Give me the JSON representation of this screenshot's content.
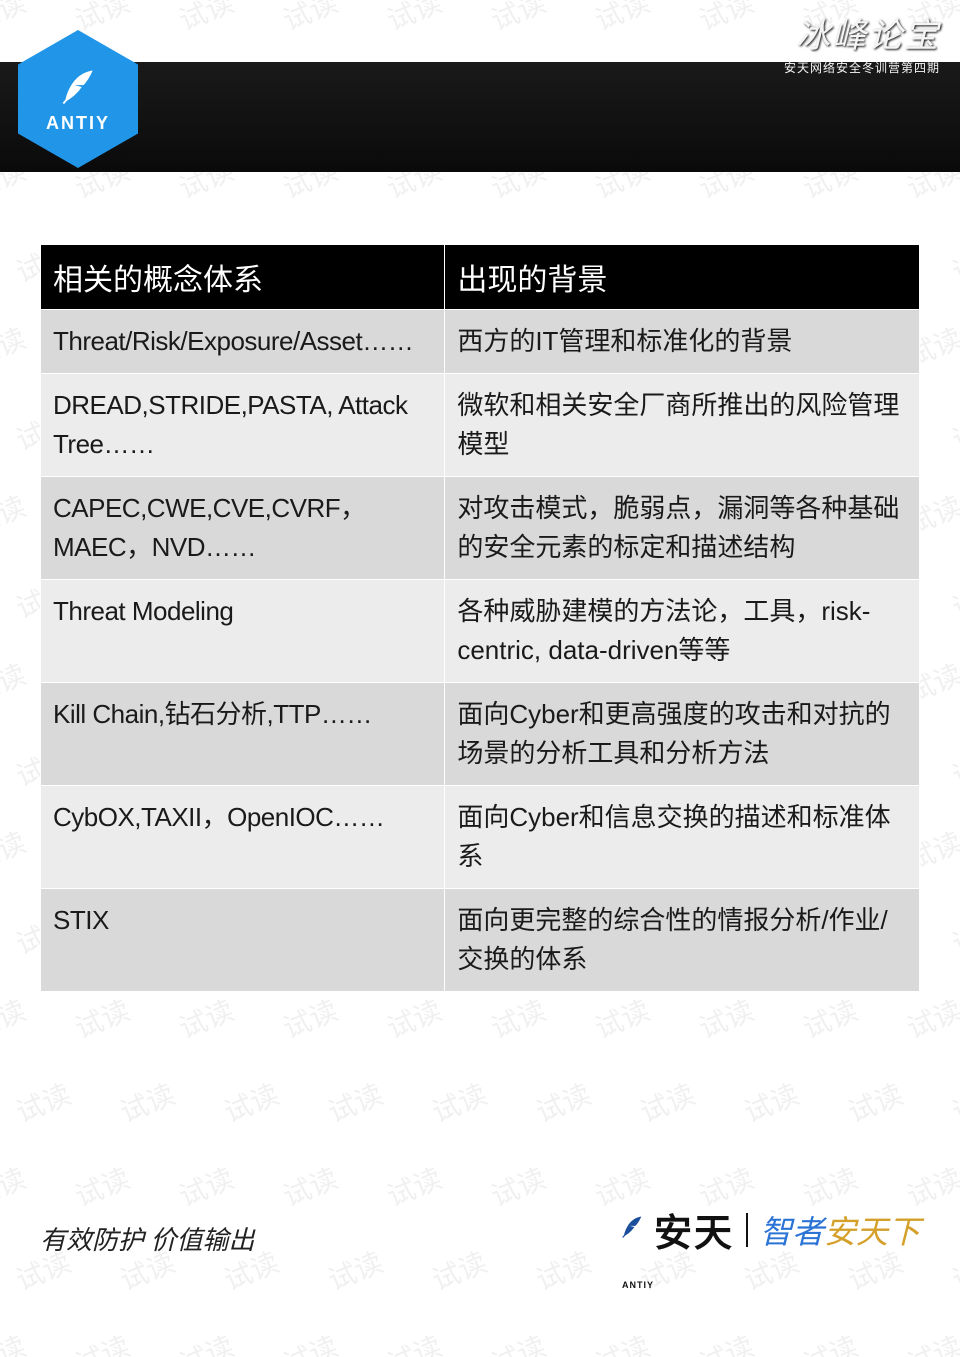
{
  "watermark_text": "试读",
  "watermark_color": "rgba(0,0,0,0.06)",
  "header": {
    "strip_bg_top": "#1a1a1a",
    "strip_bg_bottom": "#0a0a0a",
    "calligraphy_title": "冰峰论宝",
    "calligraphy_subtitle": "安天网络安全冬训营第四期"
  },
  "logo": {
    "hex_color": "#2196e8",
    "brand_text": "ANTIY",
    "feather_color": "#ffffff",
    "brand_text_color": "#ffffff"
  },
  "table": {
    "header_bg": "#000000",
    "header_fg": "#ffffff",
    "row_bg": "#d9d9d9",
    "row_alt_bg": "#ececec",
    "border_color": "#ffffff",
    "font_size_header": 30,
    "font_size_body": 26,
    "col1_width_pct": 46,
    "col2_width_pct": 54,
    "columns": [
      "相关的概念体系",
      "出现的背景"
    ],
    "rows": [
      [
        "Threat/Risk/Exposure/Asset……",
        "西方的IT管理和标准化的背景"
      ],
      [
        "DREAD,STRIDE,PASTA, Attack Tree……",
        "微软和相关安全厂商所推出的风险管理模型"
      ],
      [
        "CAPEC,CWE,CVE,CVRF，MAEC，NVD……",
        "对攻击模式，脆弱点，漏洞等各种基础的安全元素的标定和描述结构"
      ],
      [
        "Threat Modeling",
        "各种威胁建模的方法论，工具，risk-centric, data-driven等等"
      ],
      [
        "Kill Chain,钻石分析,TTP……",
        "面向Cyber和更高强度的攻击和对抗的场景的分析工具和分析方法"
      ],
      [
        "CybOX,TAXII，OpenIOC……",
        "面向Cyber和信息交换的描述和标准体系"
      ],
      [
        "STIX",
        "面向更完整的综合性的情报分析/作业/交换的体系"
      ]
    ]
  },
  "footer": {
    "left_text": "有效防护 价值输出",
    "brand_cn": "安天",
    "antiy_small": "ANTIY",
    "slogan_blue": "智者",
    "slogan_gold": "安天下",
    "blue_hex": "#2b74d6",
    "gold_hex": "#d4a02a",
    "feather_color": "#1b4f9c"
  }
}
